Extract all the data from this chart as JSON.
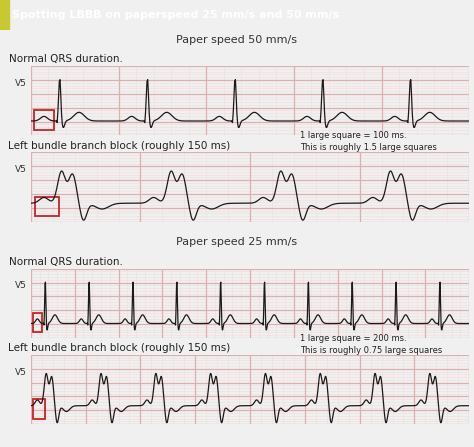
{
  "title": "Spotting LBBB on paperspeed 25 mm/s and 50 mm/s",
  "title_bg": "#4db8b8",
  "title_text_color": "white",
  "title_accent_color": "#c8c830",
  "section1_title": "Paper speed 50 mm/s",
  "section2_title": "Paper speed 25 mm/s",
  "normal_label": "Normal QRS duration.",
  "lbbb_label": "Left bundle branch block (roughly 150 ms)",
  "v5_label": "V5",
  "note1": "1 large square = 100 ms.\nThis is roughly 1.5 large squares",
  "note2": "1 large square = 200 ms.\nThis is roughly 0.75 large squares",
  "bg_color": "#f0f0f0",
  "ecg_color": "#1a1a1a",
  "grid_major_color": "#ddb0b0",
  "grid_minor_color": "#f0dede",
  "cal_box_color": "#cc2222",
  "note_bg": "#c8c8c8",
  "section_header_bg": "#e0e0e0",
  "panel_bg": "white"
}
